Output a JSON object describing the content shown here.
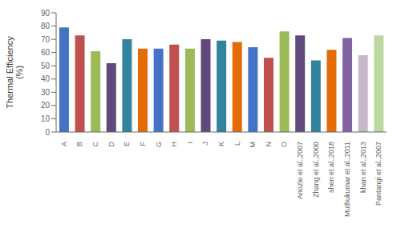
{
  "chart_data": {
    "type": "bar",
    "categories": [
      "A",
      "B",
      "C",
      "D",
      "E",
      "F",
      "G",
      "H",
      "I",
      "J",
      "K",
      "L",
      "M",
      "N",
      "O",
      "Anozie et al.,2007",
      "Zhang et al.,2000",
      "shen et al.,2018",
      "Muthukumar et al.,2011",
      "khan et al.,2013",
      "Pantangi et al.,2007"
    ],
    "values": [
      79,
      73,
      61,
      52,
      70,
      63,
      63,
      66,
      63,
      70,
      69,
      68,
      64,
      56,
      76,
      73,
      54,
      62,
      71,
      58,
      73
    ],
    "colors": [
      "#4472C4",
      "#C0504D",
      "#9BBB59",
      "#604A7B",
      "#31849B",
      "#E36C09",
      "#4472C4",
      "#C0504D",
      "#9BBB59",
      "#604A7B",
      "#31849B",
      "#E36C09",
      "#4472C4",
      "#C0504D",
      "#9BBB59",
      "#604A7B",
      "#31849B",
      "#E36C09",
      "#8064A2",
      "#C4B8C8",
      "#BDD7A0"
    ],
    "ylabel": "Thermal Efficiency\n(%)",
    "ylim": [
      0,
      90
    ],
    "yticks": [
      0,
      10,
      20,
      30,
      40,
      50,
      60,
      70,
      80,
      90
    ],
    "grid": false
  }
}
